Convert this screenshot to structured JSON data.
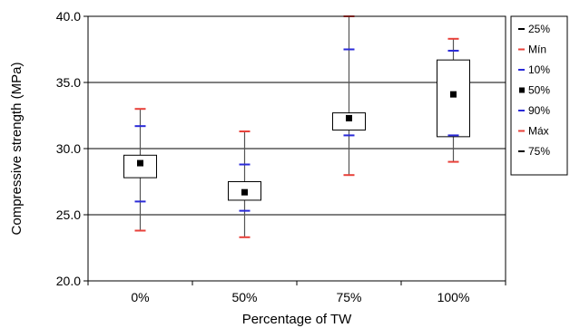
{
  "chart_data": {
    "type": "box",
    "xlabel": "Percentage of TW",
    "ylabel": "Compressive strength (MPa)",
    "categories": [
      "0%",
      "50%",
      "75%",
      "100%"
    ],
    "ylim": [
      20.0,
      40.0
    ],
    "yticks": [
      "20.0",
      "25.0",
      "30.0",
      "35.0",
      "40.0"
    ],
    "grid": "horizontal",
    "legend_position": "right",
    "legend": [
      {
        "label": "25%",
        "marker": "dash",
        "color": "#000000"
      },
      {
        "label": "Mín",
        "marker": "dash",
        "color": "#e8413a"
      },
      {
        "label": "10%",
        "marker": "dash",
        "color": "#2a2ad8"
      },
      {
        "label": "50%",
        "marker": "square",
        "color": "#000000"
      },
      {
        "label": "90%",
        "marker": "dash",
        "color": "#2a2ad8"
      },
      {
        "label": "Máx",
        "marker": "dash",
        "color": "#e8413a"
      },
      {
        "label": "75%",
        "marker": "dash",
        "color": "#000000"
      }
    ],
    "series": [
      {
        "category": "0%",
        "min": 23.8,
        "p10": 26.0,
        "q1": 27.8,
        "median": 28.9,
        "q3": 29.5,
        "p90": 31.7,
        "max": 33.0
      },
      {
        "category": "50%",
        "min": 23.3,
        "p10": 25.3,
        "q1": 26.1,
        "median": 26.7,
        "q3": 27.5,
        "p90": 28.8,
        "max": 31.3
      },
      {
        "category": "75%",
        "min": 28.0,
        "p10": 31.0,
        "q1": 31.4,
        "median": 32.3,
        "q3": 32.7,
        "p90": 37.5,
        "max": 40.0
      },
      {
        "category": "100%",
        "min": 29.0,
        "p10": 31.0,
        "q1": 30.9,
        "median": 34.1,
        "q3": 36.7,
        "p90": 37.4,
        "max": 38.3
      }
    ]
  }
}
